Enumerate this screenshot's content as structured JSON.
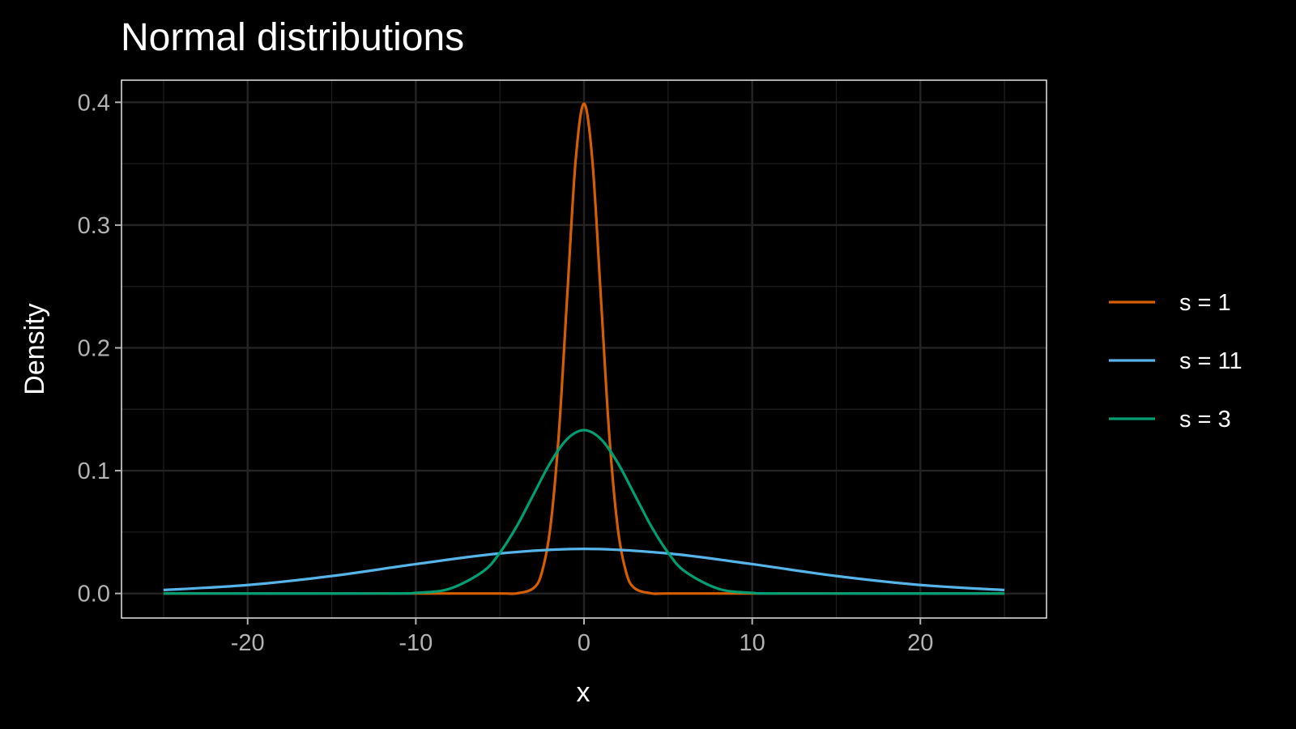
{
  "chart_data": {
    "type": "line",
    "title": "Normal distributions",
    "xlabel": "x",
    "ylabel": "Density",
    "xlim": [
      -27.5,
      27.5
    ],
    "ylim": [
      -0.02,
      0.418
    ],
    "x_ticks": [
      -20,
      -10,
      0,
      10,
      20
    ],
    "x_tick_labels": [
      "-20",
      "-10",
      "0",
      "10",
      "20"
    ],
    "y_ticks": [
      0.0,
      0.1,
      0.2,
      0.3,
      0.4
    ],
    "y_tick_labels": [
      "0.0",
      "0.1",
      "0.2",
      "0.3",
      "0.4"
    ],
    "x_minor_ticks": [
      -25,
      -15,
      -5,
      5,
      15,
      25
    ],
    "y_minor_ticks": [
      0.05,
      0.15,
      0.25,
      0.35
    ],
    "grid": true,
    "legend_position": "right",
    "background": "#000000",
    "panel_border_color": "#e6e6e6",
    "grid_color": "#1f1f1f",
    "series": [
      {
        "name": "s = 1",
        "color": "#D55E00",
        "x": [
          -25,
          -10,
          -5,
          -4,
          -3,
          -2.5,
          -2,
          -1.5,
          -1,
          -0.5,
          0,
          0.5,
          1,
          1.5,
          2,
          2.5,
          3,
          4,
          5,
          10,
          25
        ],
        "y": [
          0.0,
          0.0,
          0.0,
          0.0001,
          0.0044,
          0.0175,
          0.054,
          0.1295,
          0.242,
          0.3521,
          0.3989,
          0.3521,
          0.242,
          0.1295,
          0.054,
          0.0175,
          0.0044,
          0.0001,
          0.0,
          0.0,
          0.0
        ]
      },
      {
        "name": "s = 11",
        "color": "#56B4E9",
        "x": [
          -25,
          -20,
          -15,
          -10,
          -5,
          0,
          5,
          10,
          15,
          20,
          25
        ],
        "y": [
          0.0028,
          0.0069,
          0.0142,
          0.0239,
          0.0326,
          0.0363,
          0.0326,
          0.0239,
          0.0142,
          0.0069,
          0.0028
        ]
      },
      {
        "name": "s = 3",
        "color": "#009E73",
        "x": [
          -25,
          -12,
          -10,
          -8,
          -6,
          -5,
          -4,
          -3,
          -2,
          -1,
          0,
          1,
          2,
          3,
          4,
          5,
          6,
          8,
          10,
          12,
          25
        ],
        "y": [
          0.0,
          0.0,
          0.0005,
          0.0038,
          0.018,
          0.0332,
          0.0547,
          0.0807,
          0.1065,
          0.1258,
          0.133,
          0.1258,
          0.1065,
          0.0807,
          0.0547,
          0.0332,
          0.018,
          0.0038,
          0.0005,
          0.0,
          0.0
        ]
      }
    ]
  }
}
